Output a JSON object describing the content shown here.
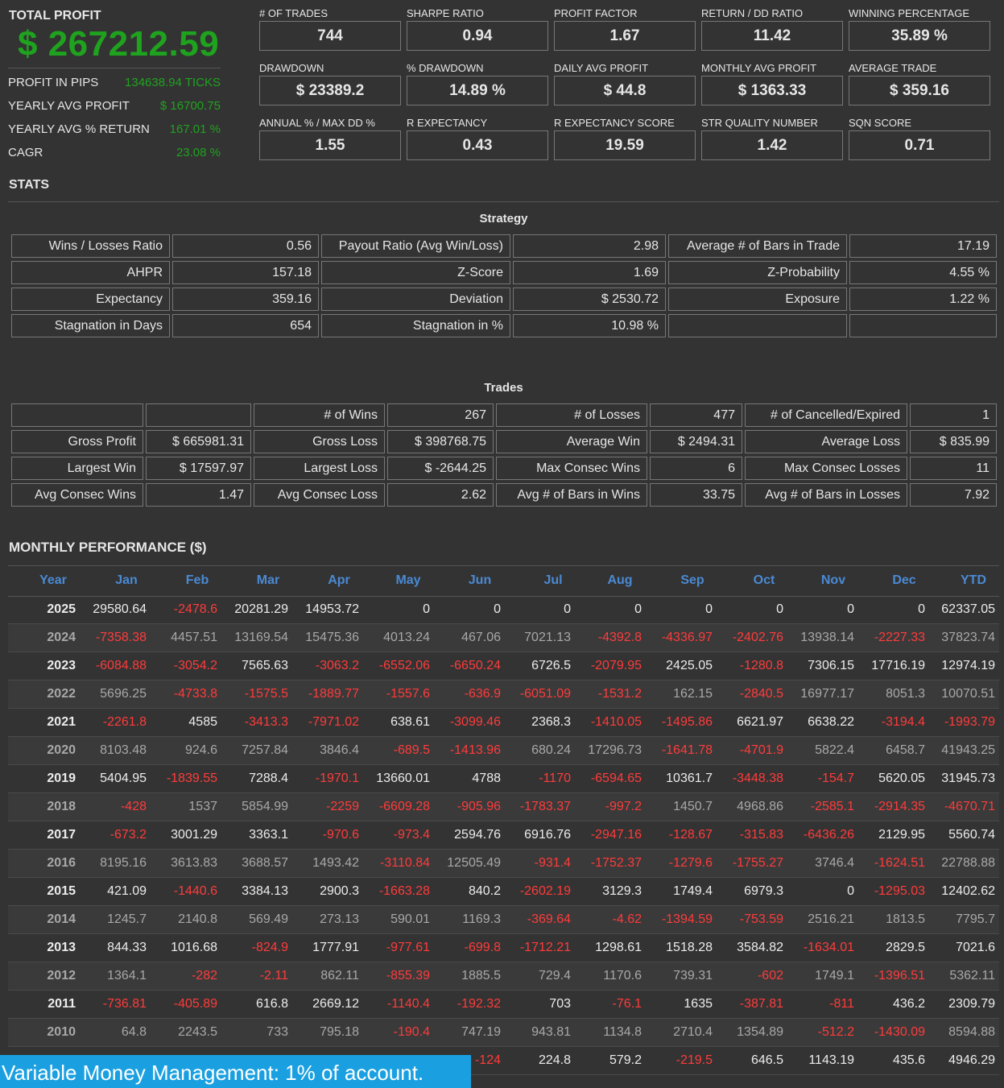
{
  "summary": {
    "total_label": "TOTAL PROFIT",
    "total_value": "$ 267212.59",
    "rows": [
      {
        "label": "PROFIT IN PIPS",
        "value": "134638.94 TICKS"
      },
      {
        "label": "YEARLY AVG PROFIT",
        "value": "$ 16700.75"
      },
      {
        "label": "YEARLY AVG % RETURN",
        "value": "167.01 %"
      },
      {
        "label": "CAGR",
        "value": "23.08 %"
      }
    ]
  },
  "metrics": [
    {
      "label": "# OF TRADES",
      "value": "744"
    },
    {
      "label": "SHARPE RATIO",
      "value": "0.94"
    },
    {
      "label": "PROFIT FACTOR",
      "value": "1.67"
    },
    {
      "label": "RETURN / DD RATIO",
      "value": "11.42"
    },
    {
      "label": "WINNING PERCENTAGE",
      "value": "35.89 %"
    },
    {
      "label": "DRAWDOWN",
      "value": "$ 23389.2"
    },
    {
      "label": "% DRAWDOWN",
      "value": "14.89 %"
    },
    {
      "label": "DAILY AVG PROFIT",
      "value": "$ 44.8"
    },
    {
      "label": "MONTHLY AVG PROFIT",
      "value": "$ 1363.33"
    },
    {
      "label": "AVERAGE TRADE",
      "value": "$ 359.16"
    },
    {
      "label": "ANNUAL % / MAX DD %",
      "value": "1.55"
    },
    {
      "label": "R EXPECTANCY",
      "value": "0.43"
    },
    {
      "label": "R EXPECTANCY SCORE",
      "value": "19.59"
    },
    {
      "label": "STR QUALITY NUMBER",
      "value": "1.42"
    },
    {
      "label": "SQN SCORE",
      "value": "0.71"
    }
  ],
  "stats_heading": "STATS",
  "strategy": {
    "caption": "Strategy",
    "rows": [
      [
        "Wins / Losses Ratio",
        "0.56",
        "Payout Ratio (Avg Win/Loss)",
        "2.98",
        "Average # of Bars in Trade",
        "17.19"
      ],
      [
        "AHPR",
        "157.18",
        "Z-Score",
        "1.69",
        "Z-Probability",
        "4.55 %"
      ],
      [
        "Expectancy",
        "359.16",
        "Deviation",
        "$ 2530.72",
        "Exposure",
        "1.22 %"
      ],
      [
        "Stagnation in Days",
        "654",
        "Stagnation in %",
        "10.98 %",
        "",
        ""
      ]
    ]
  },
  "trades": {
    "caption": "Trades",
    "rows": [
      [
        "",
        "",
        "# of Wins",
        "267",
        "# of Losses",
        "477",
        "# of Cancelled/Expired",
        "1"
      ],
      [
        "Gross Profit",
        "$ 665981.31",
        "Gross Loss",
        "$ 398768.75",
        "Average Win",
        "$ 2494.31",
        "Average Loss",
        "$ 835.99"
      ],
      [
        "Largest Win",
        "$ 17597.97",
        "Largest Loss",
        "$ -2644.25",
        "Max Consec Wins",
        "6",
        "Max Consec Losses",
        "11"
      ],
      [
        "Avg Consec Wins",
        "1.47",
        "Avg Consec Loss",
        "2.62",
        "Avg # of Bars in Wins",
        "33.75",
        "Avg # of Bars in Losses",
        "7.92"
      ]
    ]
  },
  "monthly": {
    "heading": "MONTHLY PERFORMANCE ($)",
    "headers": [
      "Year",
      "Jan",
      "Feb",
      "Mar",
      "Apr",
      "May",
      "Jun",
      "Jul",
      "Aug",
      "Sep",
      "Oct",
      "Nov",
      "Dec",
      "YTD"
    ],
    "rows": [
      [
        "2025",
        "29580.64",
        "-2478.6",
        "20281.29",
        "14953.72",
        "0",
        "0",
        "0",
        "0",
        "0",
        "0",
        "0",
        "0",
        "62337.05"
      ],
      [
        "2024",
        "-7358.38",
        "4457.51",
        "13169.54",
        "15475.36",
        "4013.24",
        "467.06",
        "7021.13",
        "-4392.8",
        "-4336.97",
        "-2402.76",
        "13938.14",
        "-2227.33",
        "37823.74"
      ],
      [
        "2023",
        "-6084.88",
        "-3054.2",
        "7565.63",
        "-3063.2",
        "-6552.06",
        "-6650.24",
        "6726.5",
        "-2079.95",
        "2425.05",
        "-1280.8",
        "7306.15",
        "17716.19",
        "12974.19"
      ],
      [
        "2022",
        "5696.25",
        "-4733.8",
        "-1575.5",
        "-1889.77",
        "-1557.6",
        "-636.9",
        "-6051.09",
        "-1531.2",
        "162.15",
        "-2840.5",
        "16977.17",
        "8051.3",
        "10070.51"
      ],
      [
        "2021",
        "-2261.8",
        "4585",
        "-3413.3",
        "-7971.02",
        "638.61",
        "-3099.46",
        "2368.3",
        "-1410.05",
        "-1495.86",
        "6621.97",
        "6638.22",
        "-3194.4",
        "-1993.79"
      ],
      [
        "2020",
        "8103.48",
        "924.6",
        "7257.84",
        "3846.4",
        "-689.5",
        "-1413.96",
        "680.24",
        "17296.73",
        "-1641.78",
        "-4701.9",
        "5822.4",
        "6458.7",
        "41943.25"
      ],
      [
        "2019",
        "5404.95",
        "-1839.55",
        "7288.4",
        "-1970.1",
        "13660.01",
        "4788",
        "-1170",
        "-6594.65",
        "10361.7",
        "-3448.38",
        "-154.7",
        "5620.05",
        "31945.73"
      ],
      [
        "2018",
        "-428",
        "1537",
        "5854.99",
        "-2259",
        "-6609.28",
        "-905.96",
        "-1783.37",
        "-997.2",
        "1450.7",
        "4968.86",
        "-2585.1",
        "-2914.35",
        "-4670.71"
      ],
      [
        "2017",
        "-673.2",
        "3001.29",
        "3363.1",
        "-970.6",
        "-973.4",
        "2594.76",
        "6916.76",
        "-2947.16",
        "-128.67",
        "-315.83",
        "-6436.26",
        "2129.95",
        "5560.74"
      ],
      [
        "2016",
        "8195.16",
        "3613.83",
        "3688.57",
        "1493.42",
        "-3110.84",
        "12505.49",
        "-931.4",
        "-1752.37",
        "-1279.6",
        "-1755.27",
        "3746.4",
        "-1624.51",
        "22788.88"
      ],
      [
        "2015",
        "421.09",
        "-1440.6",
        "3384.13",
        "2900.3",
        "-1663.28",
        "840.2",
        "-2602.19",
        "3129.3",
        "1749.4",
        "6979.3",
        "0",
        "-1295.03",
        "12402.62"
      ],
      [
        "2014",
        "1245.7",
        "2140.8",
        "569.49",
        "273.13",
        "590.01",
        "1169.3",
        "-369.64",
        "-4.62",
        "-1394.59",
        "-753.59",
        "2516.21",
        "1813.5",
        "7795.7"
      ],
      [
        "2013",
        "844.33",
        "1016.68",
        "-824.9",
        "1777.91",
        "-977.61",
        "-699.8",
        "-1712.21",
        "1298.61",
        "1518.28",
        "3584.82",
        "-1634.01",
        "2829.5",
        "7021.6"
      ],
      [
        "2012",
        "1364.1",
        "-282",
        "-2.11",
        "862.11",
        "-855.39",
        "1885.5",
        "729.4",
        "1170.6",
        "739.31",
        "-602",
        "1749.1",
        "-1396.51",
        "5362.11"
      ],
      [
        "2011",
        "-736.81",
        "-405.89",
        "616.8",
        "2669.12",
        "-1140.4",
        "-192.32",
        "703",
        "-76.1",
        "1635",
        "-387.81",
        "-811",
        "436.2",
        "2309.79"
      ],
      [
        "2010",
        "64.8",
        "2243.5",
        "733",
        "795.18",
        "-190.4",
        "747.19",
        "943.81",
        "1134.8",
        "2710.4",
        "1354.89",
        "-512.2",
        "-1430.09",
        "8594.88"
      ],
      [
        "",
        "",
        "",
        "",
        "",
        "",
        "-124",
        "224.8",
        "579.2",
        "-219.5",
        "646.5",
        "1143.19",
        "435.6",
        "4946.29"
      ]
    ]
  },
  "footer": "Variable Money Management: 1% of account."
}
